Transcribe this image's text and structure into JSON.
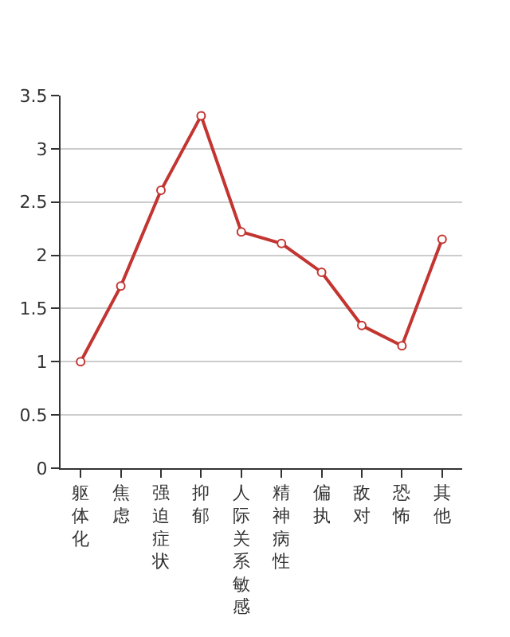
{
  "chart_data": {
    "type": "line",
    "categories": [
      "躯体化",
      "焦虑",
      "强迫症状",
      "抑郁",
      "人际关系敏感",
      "精神病性",
      "偏执",
      "敌对",
      "恐怖",
      "其他"
    ],
    "series": [
      {
        "color": "#c23531",
        "values": [
          1.0,
          1.71,
          2.61,
          3.31,
          2.22,
          2.11,
          1.84,
          1.34,
          1.15,
          2.15
        ]
      }
    ],
    "ylim": [
      0,
      3.5
    ],
    "yticks": [
      0,
      0.5,
      1,
      1.5,
      2,
      2.5,
      3,
      3.5
    ],
    "grid": "y",
    "marker": "circle",
    "line_style": "solid",
    "legend": false
  }
}
